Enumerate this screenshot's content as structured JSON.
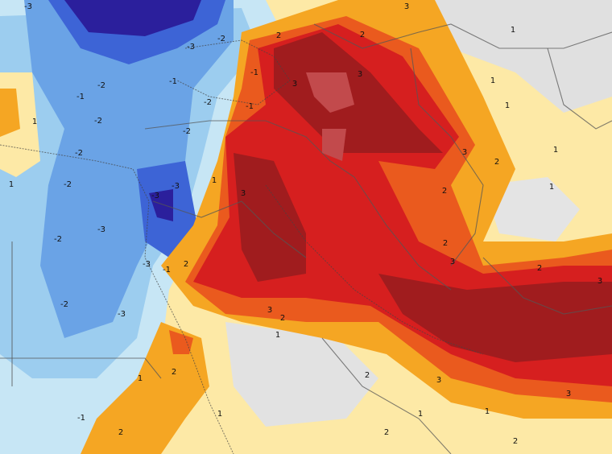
{
  "map": {
    "contour_labels": [
      "-3",
      "-3",
      "-2",
      "-1",
      "-2",
      "-1",
      "-1",
      "-2",
      "-2",
      "-2",
      "-1",
      "-2",
      "-2",
      "-3",
      "-3",
      "-2",
      "-3",
      "-3",
      "-1",
      "-2",
      "-3",
      "-1",
      "1",
      "1",
      "1",
      "2",
      "2",
      "2",
      "3",
      "1",
      "1",
      "1",
      "1",
      "2",
      "2",
      "3",
      "1",
      "2",
      "3",
      "3",
      "2",
      "1",
      "2",
      "1",
      "2",
      "3",
      "3",
      "1",
      "1",
      "2",
      "2",
      "2",
      "3",
      "2",
      "3",
      "3",
      "3",
      "1"
    ]
  }
}
